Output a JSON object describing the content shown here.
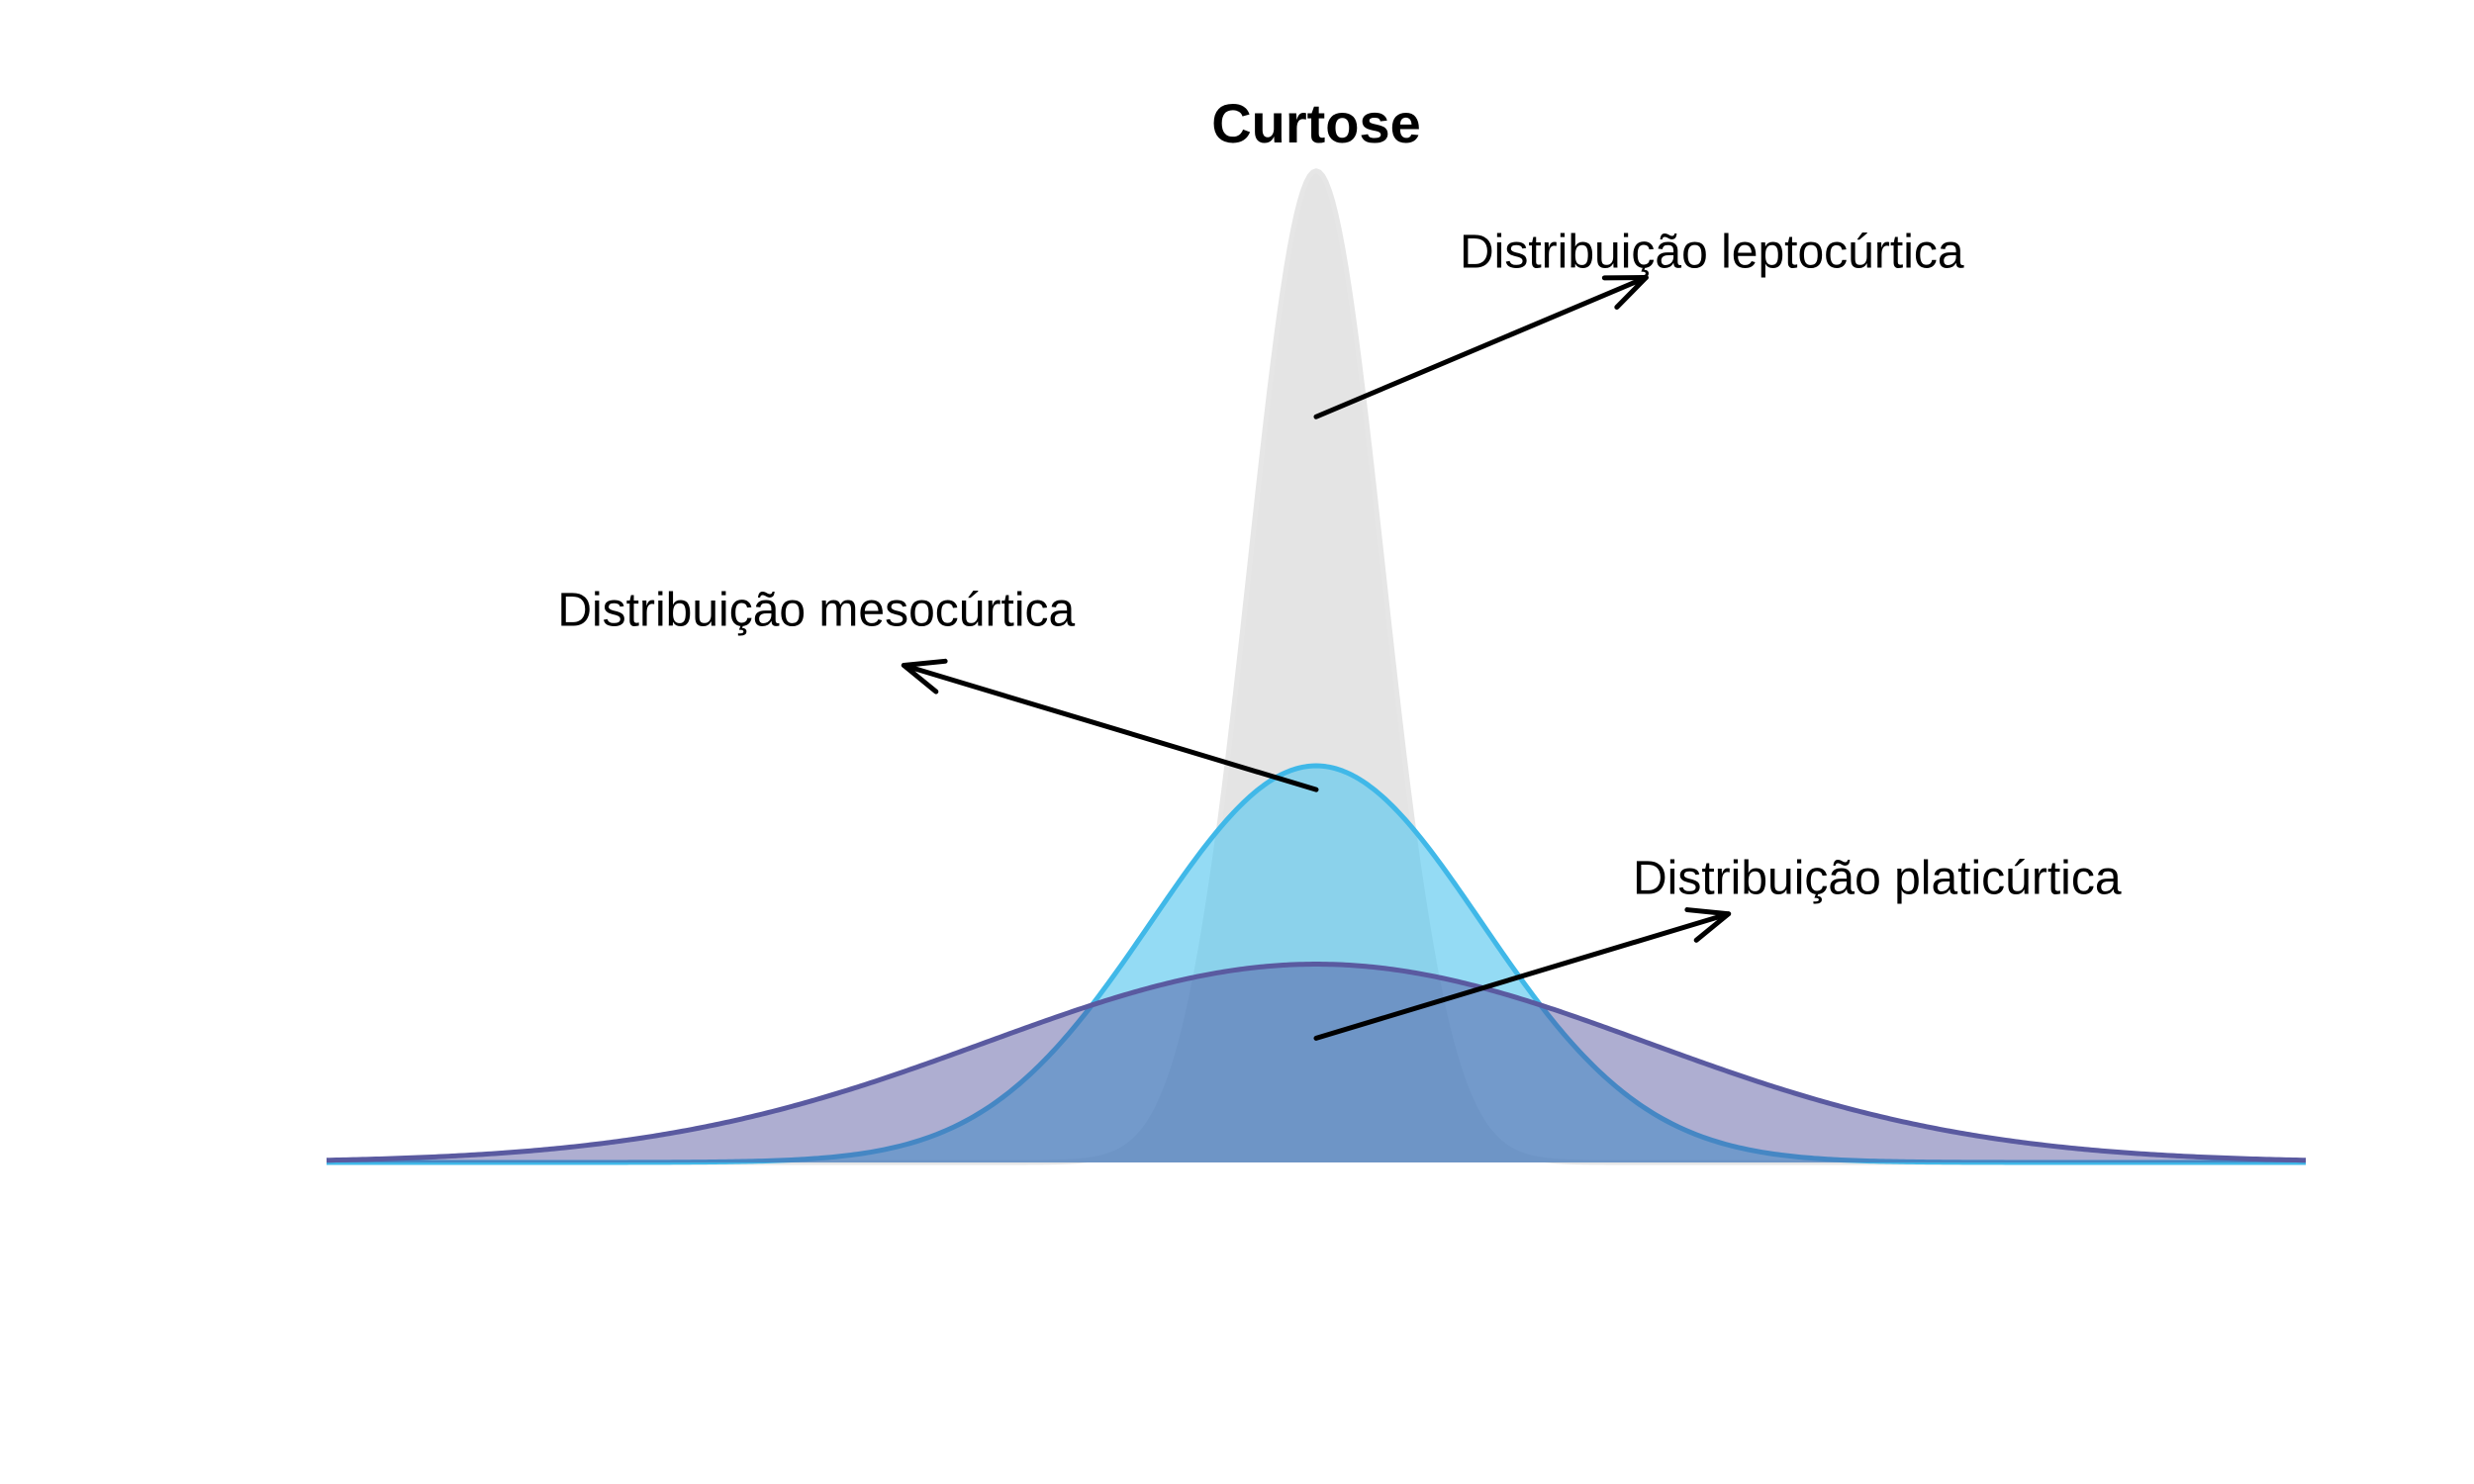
{
  "chart_data": {
    "type": "area",
    "title": "Curtose",
    "xlabel": "",
    "ylabel": "",
    "xlim": [
      -6,
      6
    ],
    "ylim": [
      0,
      1.0
    ],
    "grid": false,
    "axes_visible": false,
    "series": [
      {
        "key": "lepto",
        "kind": "normal-density",
        "mean": 0,
        "sd": 0.4,
        "fill": "#d9d9d9",
        "fill_opacity": 0.7,
        "stroke": "#e6e6e6"
      },
      {
        "key": "meso",
        "kind": "normal-density",
        "mean": 0,
        "sd": 1.0,
        "fill": "#5bc8ee",
        "fill_opacity": 0.65,
        "stroke": "#40b8e8"
      },
      {
        "key": "plati",
        "kind": "normal-density",
        "mean": 0,
        "sd": 2.0,
        "fill": "#4c4c99",
        "fill_opacity": 0.45,
        "stroke": "#5a5aa0"
      }
    ],
    "annotations": [
      {
        "key": "lepto",
        "text": "Distribuição leptocúrtica",
        "from": [
          0,
          0.75
        ],
        "to": [
          2.0,
          0.89
        ],
        "text_at": [
          0.87,
          0.9
        ],
        "anchor": "start"
      },
      {
        "key": "meso",
        "text": "Distribuição mesocúrtica",
        "from": [
          0,
          0.375
        ],
        "to": [
          -2.5,
          0.5
        ],
        "text_at": [
          -4.6,
          0.54
        ],
        "anchor": "start"
      },
      {
        "key": "plati",
        "text": "Distribuição platicúrtica",
        "from": [
          0,
          0.125
        ],
        "to": [
          2.5,
          0.25
        ],
        "text_at": [
          1.92,
          0.27
        ],
        "anchor": "start"
      }
    ]
  }
}
